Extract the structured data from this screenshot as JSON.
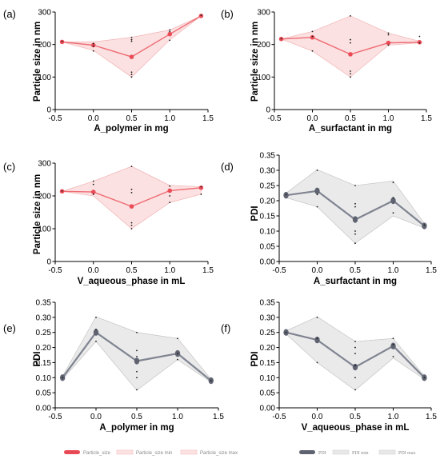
{
  "colors": {
    "size_line": "#ef6b73",
    "size_marker": "#ea4b56",
    "size_band": "#fadcdc",
    "size_band_edge": "#f3b6b8",
    "pdi_line": "#7f8491",
    "pdi_marker": "#5f6371",
    "pdi_band": "#e6e6e6",
    "pdi_band_edge": "#c8c8c8",
    "points": "#1a1a1a"
  },
  "legends": {
    "size": [
      "Particle_size",
      "Particle_size min",
      "Particle_size max"
    ],
    "pdi": [
      "PDI",
      "PDI min",
      "PDI max"
    ]
  },
  "chart_data": [
    {
      "panel": "(a)",
      "type": "line",
      "xlabel": "A_polymer in mg",
      "ylabel": "Particle size in nm",
      "xlim": [
        -0.5,
        1.5
      ],
      "ylim": [
        0,
        300
      ],
      "xticks": [
        "-0.5",
        "0.0",
        "0.5",
        "1.0",
        "1.5"
      ],
      "yticks": [
        "0",
        "100",
        "200",
        "300"
      ],
      "series": [
        {
          "role": "mean",
          "x": [
            -0.41,
            0,
            0.5,
            1,
            1.41
          ],
          "y": [
            208,
            198,
            162,
            232,
            288
          ]
        },
        {
          "role": "min",
          "x": [
            -0.41,
            0,
            0.5,
            1,
            1.41
          ],
          "y": [
            208,
            182,
            100,
            215,
            288
          ]
        },
        {
          "role": "max",
          "x": [
            -0.41,
            0,
            0.5,
            1,
            1.41
          ],
          "y": [
            208,
            208,
            222,
            245,
            288
          ]
        }
      ],
      "points": [
        [
          -0.41,
          210
        ],
        [
          0,
          180
        ],
        [
          0,
          195
        ],
        [
          0,
          203
        ],
        [
          0.5,
          100
        ],
        [
          0.5,
          108
        ],
        [
          0.5,
          115
        ],
        [
          0.5,
          210
        ],
        [
          0.5,
          215
        ],
        [
          0.5,
          222
        ],
        [
          1,
          213
        ],
        [
          1,
          240
        ],
        [
          1,
          245
        ],
        [
          1.41,
          290
        ]
      ]
    },
    {
      "panel": "(b)",
      "type": "line",
      "xlabel": "A_surfactant in mg",
      "ylabel": "Particle size in nm",
      "xlim": [
        -0.5,
        1.5
      ],
      "ylim": [
        0,
        300
      ],
      "xticks": [
        "-0.5",
        "0.0",
        "0.5",
        "1.0",
        "1.5"
      ],
      "yticks": [
        "0",
        "100",
        "200",
        "300"
      ],
      "series": [
        {
          "role": "mean",
          "x": [
            -0.41,
            0,
            0.5,
            1,
            1.41
          ],
          "y": [
            217,
            222,
            170,
            205,
            207
          ]
        },
        {
          "role": "min",
          "x": [
            -0.41,
            0,
            0.5,
            1,
            1.41
          ],
          "y": [
            217,
            180,
            100,
            198,
            205
          ]
        },
        {
          "role": "max",
          "x": [
            -0.41,
            0,
            0.5,
            1,
            1.41
          ],
          "y": [
            217,
            240,
            288,
            235,
            210
          ]
        }
      ],
      "points": [
        [
          -0.41,
          218
        ],
        [
          0,
          180
        ],
        [
          0,
          240
        ],
        [
          0,
          225
        ],
        [
          0.5,
          100
        ],
        [
          0.5,
          110
        ],
        [
          0.5,
          118
        ],
        [
          0.5,
          205
        ],
        [
          0.5,
          215
        ],
        [
          0.5,
          288
        ],
        [
          1,
          198
        ],
        [
          1,
          230
        ],
        [
          1,
          235
        ],
        [
          1.41,
          205
        ],
        [
          1.41,
          225
        ]
      ]
    },
    {
      "panel": "(c)",
      "type": "line",
      "xlabel": "V_aqueous_phase in mL",
      "ylabel": "Particle size in nm",
      "xlim": [
        -0.5,
        1.5
      ],
      "ylim": [
        0,
        300
      ],
      "xticks": [
        "-0.5",
        "0.0",
        "0.5",
        "1.0",
        "1.5"
      ],
      "yticks": [
        "0",
        "100",
        "200",
        "300"
      ],
      "series": [
        {
          "role": "mean",
          "x": [
            -0.41,
            0,
            0.5,
            1,
            1.41
          ],
          "y": [
            214,
            212,
            168,
            216,
            225
          ]
        },
        {
          "role": "min",
          "x": [
            -0.41,
            0,
            0.5,
            1,
            1.41
          ],
          "y": [
            214,
            200,
            100,
            180,
            205
          ]
        },
        {
          "role": "max",
          "x": [
            -0.41,
            0,
            0.5,
            1,
            1.41
          ],
          "y": [
            214,
            245,
            290,
            232,
            228
          ]
        }
      ],
      "points": [
        [
          -0.41,
          215
        ],
        [
          0,
          205
        ],
        [
          0,
          235
        ],
        [
          0,
          245
        ],
        [
          0.5,
          100
        ],
        [
          0.5,
          110
        ],
        [
          0.5,
          118
        ],
        [
          0.5,
          210
        ],
        [
          0.5,
          220
        ],
        [
          0.5,
          290
        ],
        [
          1,
          180
        ],
        [
          1,
          200
        ],
        [
          1,
          230
        ],
        [
          1.41,
          205
        ],
        [
          1.41,
          228
        ]
      ]
    },
    {
      "panel": "(d)",
      "type": "line",
      "xlabel": "A_surfactant in mg",
      "ylabel": "PDI",
      "xlim": [
        -0.5,
        1.5
      ],
      "ylim": [
        0,
        0.35
      ],
      "xticks": [
        "-0.5",
        "0.0",
        "0.5",
        "1.0",
        "1.5"
      ],
      "yticks": [
        "0.00",
        "0.05",
        "0.10",
        "0.15",
        "0.20",
        "0.25",
        "0.30",
        "0.35"
      ],
      "series": [
        {
          "role": "mean",
          "x": [
            -0.41,
            0,
            0.5,
            1,
            1.41
          ],
          "y": [
            0.218,
            0.232,
            0.138,
            0.2,
            0.117
          ]
        },
        {
          "role": "min",
          "x": [
            -0.41,
            0,
            0.5,
            1,
            1.41
          ],
          "y": [
            0.21,
            0.18,
            0.06,
            0.15,
            0.11
          ]
        },
        {
          "role": "max",
          "x": [
            -0.41,
            0,
            0.5,
            1,
            1.41
          ],
          "y": [
            0.225,
            0.302,
            0.25,
            0.265,
            0.125
          ]
        }
      ],
      "points": [
        [
          -0.41,
          0.22
        ],
        [
          0,
          0.18
        ],
        [
          0,
          0.22
        ],
        [
          0,
          0.3
        ],
        [
          0.5,
          0.06
        ],
        [
          0.5,
          0.09
        ],
        [
          0.5,
          0.1
        ],
        [
          0.5,
          0.18
        ],
        [
          0.5,
          0.19
        ],
        [
          0.5,
          0.25
        ],
        [
          1,
          0.16
        ],
        [
          1,
          0.21
        ],
        [
          1,
          0.26
        ],
        [
          1.41,
          0.12
        ]
      ]
    },
    {
      "panel": "(e)",
      "type": "line",
      "xlabel": "A_polymer in mg",
      "ylabel": "PDI",
      "xlim": [
        -0.5,
        1.5
      ],
      "ylim": [
        0,
        0.35
      ],
      "xticks": [
        "-0.5",
        "0.0",
        "0.5",
        "1.0",
        "1.5"
      ],
      "yticks": [
        "0.00",
        "0.05",
        "0.10",
        "0.15",
        "0.20",
        "0.25",
        "0.30",
        "0.35"
      ],
      "series": [
        {
          "role": "mean",
          "x": [
            -0.41,
            0,
            0.5,
            1,
            1.41
          ],
          "y": [
            0.1,
            0.25,
            0.155,
            0.18,
            0.09
          ]
        },
        {
          "role": "min",
          "x": [
            -0.41,
            0,
            0.5,
            1,
            1.41
          ],
          "y": [
            0.095,
            0.22,
            0.058,
            0.16,
            0.085
          ]
        },
        {
          "role": "max",
          "x": [
            -0.41,
            0,
            0.5,
            1,
            1.41
          ],
          "y": [
            0.105,
            0.302,
            0.25,
            0.23,
            0.095
          ]
        }
      ],
      "points": [
        [
          -0.41,
          0.1
        ],
        [
          0,
          0.22
        ],
        [
          0,
          0.26
        ],
        [
          0,
          0.3
        ],
        [
          0.5,
          0.06
        ],
        [
          0.5,
          0.1
        ],
        [
          0.5,
          0.12
        ],
        [
          0.5,
          0.17
        ],
        [
          0.5,
          0.19
        ],
        [
          0.5,
          0.25
        ],
        [
          1,
          0.16
        ],
        [
          1,
          0.18
        ],
        [
          1,
          0.23
        ],
        [
          1.41,
          0.09
        ]
      ]
    },
    {
      "panel": "(f)",
      "type": "line",
      "xlabel": "V_aqueous_phase in mL",
      "ylabel": "PDI",
      "xlim": [
        -0.5,
        1.5
      ],
      "ylim": [
        0,
        0.35
      ],
      "xticks": [
        "-0.5",
        "0.0",
        "0.5",
        "1.0",
        "1.5"
      ],
      "yticks": [
        "0.00",
        "0.05",
        "0.10",
        "0.15",
        "0.20",
        "0.25",
        "0.30",
        "0.35"
      ],
      "series": [
        {
          "role": "mean",
          "x": [
            -0.41,
            0,
            0.5,
            1,
            1.41
          ],
          "y": [
            0.25,
            0.225,
            0.135,
            0.205,
            0.1
          ]
        },
        {
          "role": "min",
          "x": [
            -0.41,
            0,
            0.5,
            1,
            1.41
          ],
          "y": [
            0.245,
            0.15,
            0.058,
            0.165,
            0.095
          ]
        },
        {
          "role": "max",
          "x": [
            -0.41,
            0,
            0.5,
            1,
            1.41
          ],
          "y": [
            0.255,
            0.302,
            0.22,
            0.23,
            0.105
          ]
        }
      ],
      "points": [
        [
          -0.41,
          0.25
        ],
        [
          0,
          0.15
        ],
        [
          0,
          0.23
        ],
        [
          0,
          0.3
        ],
        [
          0.5,
          0.06
        ],
        [
          0.5,
          0.1
        ],
        [
          0.5,
          0.14
        ],
        [
          0.5,
          0.18
        ],
        [
          0.5,
          0.2
        ],
        [
          0.5,
          0.22
        ],
        [
          1,
          0.17
        ],
        [
          1,
          0.21
        ],
        [
          1,
          0.23
        ],
        [
          1.41,
          0.1
        ]
      ]
    }
  ]
}
